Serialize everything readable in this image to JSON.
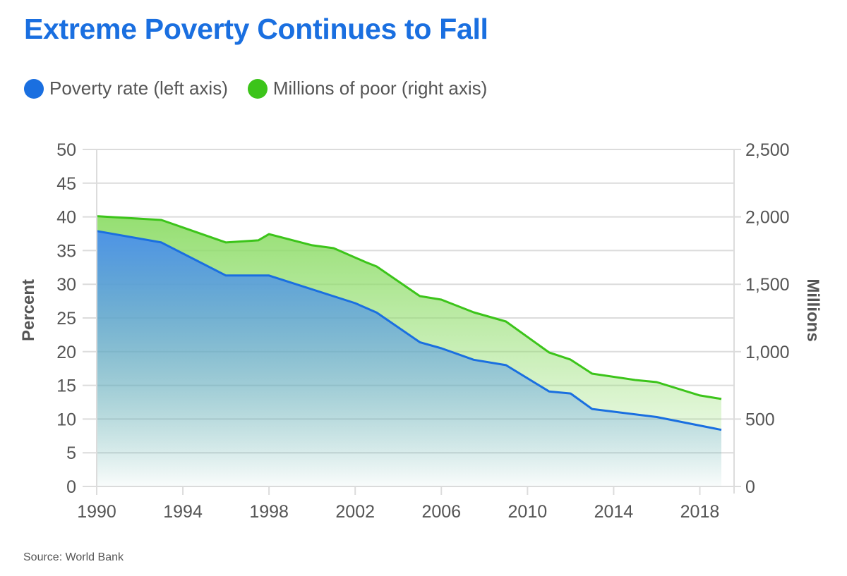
{
  "title": "Extreme Poverty Continues to Fall",
  "source": "Source: World Bank",
  "legend": [
    {
      "label": "Poverty rate (left axis)",
      "color": "#1a6fe0"
    },
    {
      "label": "Millions of poor (right axis)",
      "color": "#3cc41a"
    }
  ],
  "chart_data": {
    "type": "area",
    "title": "Extreme Poverty Continues to Fall",
    "xlabel": "",
    "ylabel": "Percent",
    "y2label": "Millions",
    "xlim": [
      1990,
      2019
    ],
    "ylim": [
      0,
      50
    ],
    "y2lim": [
      0,
      2500
    ],
    "x_ticks": [
      1990,
      1994,
      1998,
      2002,
      2006,
      2010,
      2014,
      2018
    ],
    "y_ticks": [
      "0",
      "5",
      "10",
      "15",
      "20",
      "25",
      "30",
      "35",
      "40",
      "45",
      "50"
    ],
    "y2_ticks": [
      "0",
      "500",
      "1,000",
      "1,500",
      "2,000",
      "2,500"
    ],
    "grid": true,
    "legend_position": "top-left",
    "series": [
      {
        "name": "Poverty rate (left axis)",
        "axis": "left",
        "color": "#1a6fe0",
        "x": [
          1990,
          1993,
          1996,
          1998,
          2002,
          2003,
          2005,
          2006,
          2007.5,
          2009,
          2011,
          2012,
          2013,
          2016,
          2019
        ],
        "values": [
          37.9,
          36.2,
          31.3,
          31.3,
          27.2,
          25.8,
          21.4,
          20.5,
          18.8,
          18.0,
          14.1,
          13.8,
          11.5,
          10.3,
          8.4
        ]
      },
      {
        "name": "Millions of poor (right axis)",
        "axis": "right",
        "color": "#3cc41a",
        "x": [
          1990,
          1993,
          1996,
          1997.5,
          1998,
          2000,
          2001,
          2002.5,
          2003,
          2005,
          2006,
          2007.5,
          2009,
          2011,
          2012,
          2013,
          2015,
          2016,
          2018,
          2019
        ],
        "values": [
          2005,
          1977,
          1810,
          1826,
          1872,
          1789,
          1768,
          1663,
          1632,
          1412,
          1386,
          1292,
          1224,
          994,
          941,
          837,
          790,
          774,
          675,
          649
        ]
      }
    ]
  }
}
